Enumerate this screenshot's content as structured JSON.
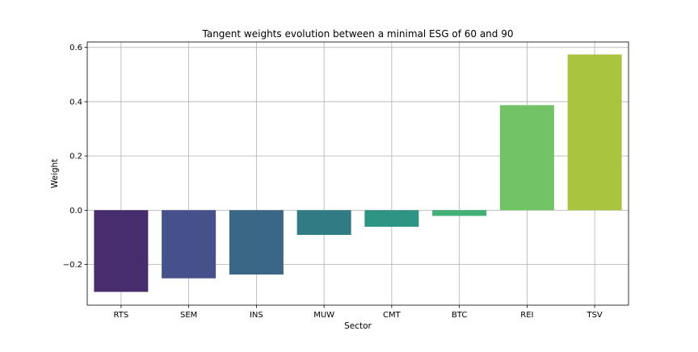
{
  "chart_data": {
    "type": "bar",
    "title": "Tangent weights evolution between a minimal ESG of 60 and 90",
    "xlabel": "Sector",
    "ylabel": "Weight",
    "categories": [
      "RTS",
      "SEM",
      "INS",
      "MUW",
      "CMT",
      "BTC",
      "REI",
      "TSV"
    ],
    "values": [
      -0.301,
      -0.251,
      -0.237,
      -0.091,
      -0.061,
      -0.021,
      0.387,
      0.574
    ],
    "colors": [
      "#472D6D",
      "#46508A",
      "#3A6785",
      "#317B84",
      "#2E9484",
      "#43B078",
      "#72C266",
      "#A9C540"
    ],
    "ylim": [
      -0.35,
      0.62
    ],
    "yticks": [
      -0.2,
      0.0,
      0.2,
      0.4,
      0.6
    ],
    "ytick_labels": [
      "−0.2",
      "0.0",
      "0.2",
      "0.4",
      "0.6"
    ],
    "grid": true
  }
}
